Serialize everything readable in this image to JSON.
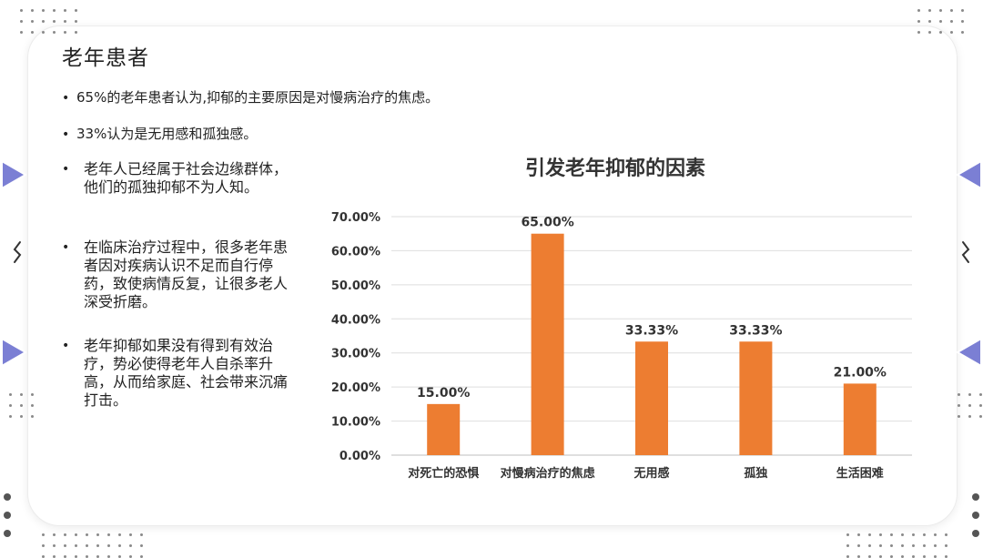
{
  "slide": {
    "title": "老年患者",
    "bullets_top": [
      "65%的老年患者认为,抑郁的主要原因是对慢病治疗的焦虑。",
      "33%认为是无用感和孤独感。"
    ],
    "bullets": [
      "老年人已经属于社会边缘群体，他们的孤独抑郁不为人知。",
      "在临床治疗过程中，很多老年患者因对疾病认识不足而自行停药，致使病情反复，让很多老人深受折磨。",
      "老年抑郁如果没有得到有效治疗，势必使得老年人自杀率升高，从而给家庭、社会带来沉痛打击。"
    ],
    "bullet_marker": "•"
  },
  "chart_data": {
    "type": "bar",
    "title": "引发老年抑郁的因素",
    "categories": [
      "对死亡的恐惧",
      "对慢病治疗的焦虑",
      "无用感",
      "孤独",
      "生活困难"
    ],
    "values": [
      15.0,
      65.0,
      33.33,
      33.33,
      21.0
    ],
    "data_labels": [
      "15.00%",
      "65.00%",
      "33.33%",
      "33.33%",
      "21.00%"
    ],
    "y_ticks": [
      "0.00%",
      "10.00%",
      "20.00%",
      "30.00%",
      "40.00%",
      "50.00%",
      "60.00%",
      "70.00%"
    ],
    "ylim": [
      0,
      70
    ],
    "bar_color": "#ed7d31",
    "grid": true,
    "legend": "none"
  },
  "decor": {
    "triangle_color": "#7b7fd4",
    "dot_color": "#8a8a8a"
  }
}
